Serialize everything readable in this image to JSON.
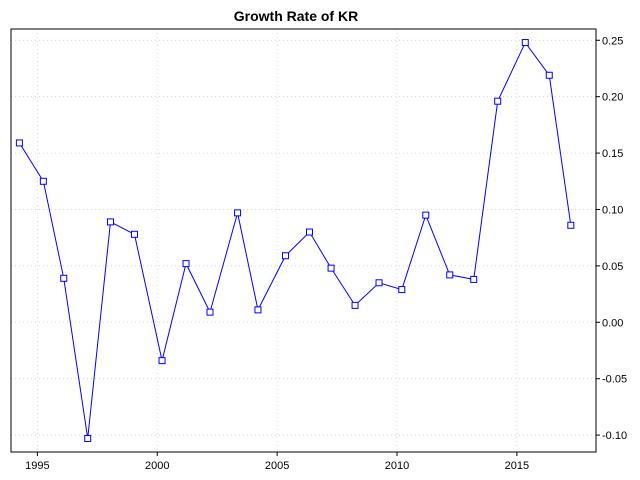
{
  "chart_data": {
    "type": "line",
    "title": "Growth Rate of KR",
    "xlabel": "",
    "ylabel": "",
    "xlim": [
      1993.9,
      2018.3
    ],
    "ylim": [
      -0.115,
      0.26
    ],
    "x_ticks": [
      1995,
      2000,
      2005,
      2010,
      2015
    ],
    "y_ticks": [
      -0.1,
      -0.05,
      0.0,
      0.05,
      0.1,
      0.15,
      0.2,
      0.25
    ],
    "y_tick_labels": [
      "-0.10",
      "-0.05",
      "0.00",
      "0.05",
      "0.10",
      "0.15",
      "0.20",
      "0.25"
    ],
    "y_axis_side": "right",
    "grid": true,
    "series_color": "#0000ff",
    "marker": "open-square",
    "x": [
      1994.25,
      1995.25,
      1996.1,
      1997.1,
      1998.05,
      1999.05,
      2000.2,
      2001.2,
      2002.2,
      2003.35,
      2004.2,
      2005.35,
      2006.35,
      2007.25,
      2008.25,
      2009.25,
      2010.2,
      2011.2,
      2012.2,
      2013.2,
      2014.2,
      2015.35,
      2016.35,
      2017.25
    ],
    "values": [
      0.159,
      0.125,
      0.039,
      -0.103,
      0.089,
      0.078,
      -0.034,
      0.052,
      0.009,
      0.097,
      0.011,
      0.059,
      0.08,
      0.048,
      0.015,
      0.035,
      0.029,
      0.095,
      0.042,
      0.038,
      0.196,
      0.248,
      0.219,
      0.086
    ]
  }
}
